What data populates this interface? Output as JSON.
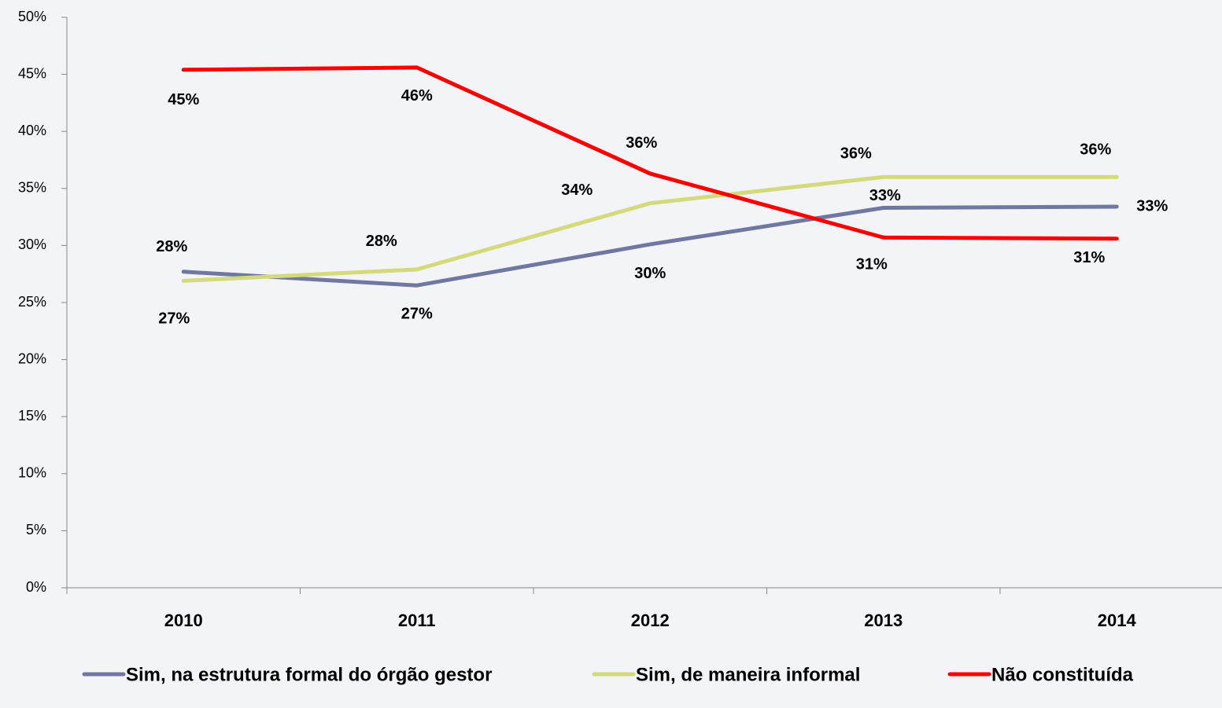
{
  "chart_data": {
    "type": "line",
    "categories": [
      "2010",
      "2011",
      "2012",
      "2013",
      "2014"
    ],
    "series": [
      {
        "name": "Sim, na estrutura formal do órgão gestor",
        "color": "#7178a0",
        "values": [
          27.7,
          26.5,
          30.1,
          33.3,
          33.4
        ],
        "value_labels": [
          "28%",
          "27%",
          "30%",
          "33%",
          "33%"
        ]
      },
      {
        "name": "Sim, de maneira informal",
        "color": "#d4d97a",
        "values": [
          26.9,
          27.9,
          33.7,
          36.0,
          36.0
        ],
        "value_labels": [
          "27%",
          "28%",
          "34%",
          "36%",
          "36%"
        ]
      },
      {
        "name": "Não constituída",
        "color": "#ff0000",
        "values": [
          45.4,
          45.6,
          36.3,
          30.7,
          30.6
        ],
        "value_labels": [
          "45%",
          "46%",
          "36%",
          "31%",
          "31%"
        ]
      }
    ],
    "ylim": [
      0,
      50
    ],
    "yticks": [
      {
        "value": 0,
        "label": "0%"
      },
      {
        "value": 5,
        "label": "5%"
      },
      {
        "value": 10,
        "label": "10%"
      },
      {
        "value": 15,
        "label": "15%"
      },
      {
        "value": 20,
        "label": "20%"
      },
      {
        "value": 25,
        "label": "25%"
      },
      {
        "value": 30,
        "label": "30%"
      },
      {
        "value": 35,
        "label": "35%"
      },
      {
        "value": 40,
        "label": "40%"
      },
      {
        "value": 45,
        "label": "45%"
      },
      {
        "value": 50,
        "label": "50%"
      }
    ],
    "legend": "bottom"
  }
}
